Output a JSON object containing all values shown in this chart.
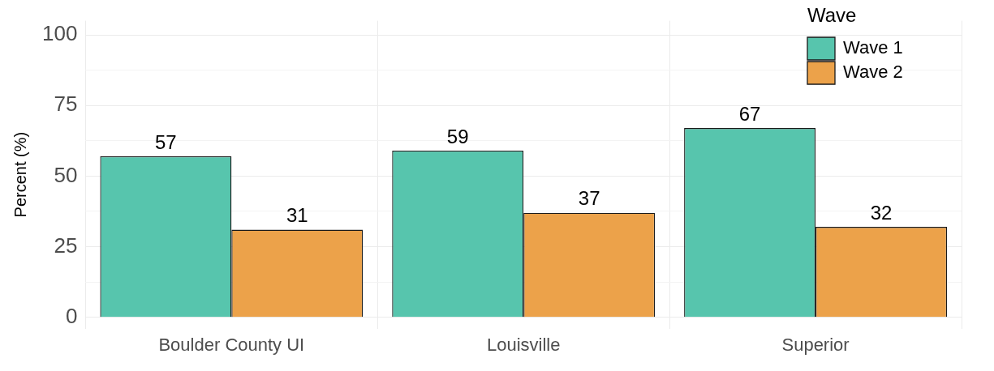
{
  "chart_data": {
    "type": "bar",
    "ylabel": "Percent (%)",
    "legend_title": "Wave",
    "categories": [
      "Boulder County UI",
      "Louisville",
      "Superior"
    ],
    "series": [
      {
        "name": "Wave 1",
        "color": "#57c5ad",
        "values": [
          57,
          59,
          67
        ]
      },
      {
        "name": "Wave 2",
        "color": "#eca24a",
        "values": [
          31,
          37,
          32
        ]
      }
    ],
    "ylim": [
      -4,
      105
    ],
    "yticks": [
      0,
      {
        "value": 12.5,
        "label": null
      },
      25,
      {
        "value": 37.5,
        "label": null
      },
      50,
      {
        "value": 62.5,
        "label": null
      },
      75,
      {
        "value": 87.5,
        "label": null
      },
      100
    ],
    "grid": true,
    "legend": "top right",
    "data_labels": true
  }
}
